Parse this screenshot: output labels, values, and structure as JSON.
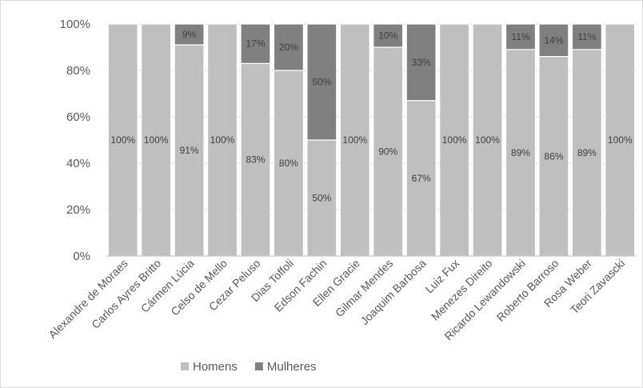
{
  "chart_data": {
    "type": "bar",
    "stacked": true,
    "percent_stacked": true,
    "title": "",
    "xlabel": "",
    "ylabel": "",
    "ylim": [
      0,
      100
    ],
    "yticks": [
      "0%",
      "20%",
      "40%",
      "60%",
      "80%",
      "100%"
    ],
    "categories": [
      "Alexandre de Moraes",
      "Carlos Ayres Britto",
      "Cármen Lúcia",
      "Celso de Mello",
      "Cezar Peluso",
      "Dias Toffoli",
      "Edson Fachin",
      "Ellen Gracie",
      "Gilmar Mendes",
      "Joaquim Barbosa",
      "Luiz Fux",
      "Menezes Direito",
      "Ricardo Lewandowski",
      "Roberto Barroso",
      "Rosa Weber",
      "Teori Zavascki"
    ],
    "series": [
      {
        "name": "Homens",
        "color": "#bfbfbf",
        "values": [
          100,
          100,
          91,
          100,
          83,
          80,
          50,
          100,
          90,
          67,
          100,
          100,
          89,
          86,
          89,
          100
        ],
        "labels": [
          "100%",
          "100%",
          "91%",
          "100%",
          "83%",
          "80%",
          "50%",
          "100%",
          "90%",
          "67%",
          "100%",
          "100%",
          "89%",
          "86%",
          "89%",
          "100%"
        ]
      },
      {
        "name": "Mulheres",
        "color": "#808080",
        "values": [
          0,
          0,
          9,
          0,
          17,
          20,
          50,
          0,
          10,
          33,
          0,
          0,
          11,
          14,
          11,
          0
        ],
        "labels": [
          "",
          "",
          "9%",
          "",
          "17%",
          "20%",
          "50%",
          "",
          "10%",
          "33%",
          "",
          "",
          "11%",
          "14%",
          "11%",
          ""
        ]
      }
    ],
    "grid": true,
    "legend_position": "bottom"
  }
}
